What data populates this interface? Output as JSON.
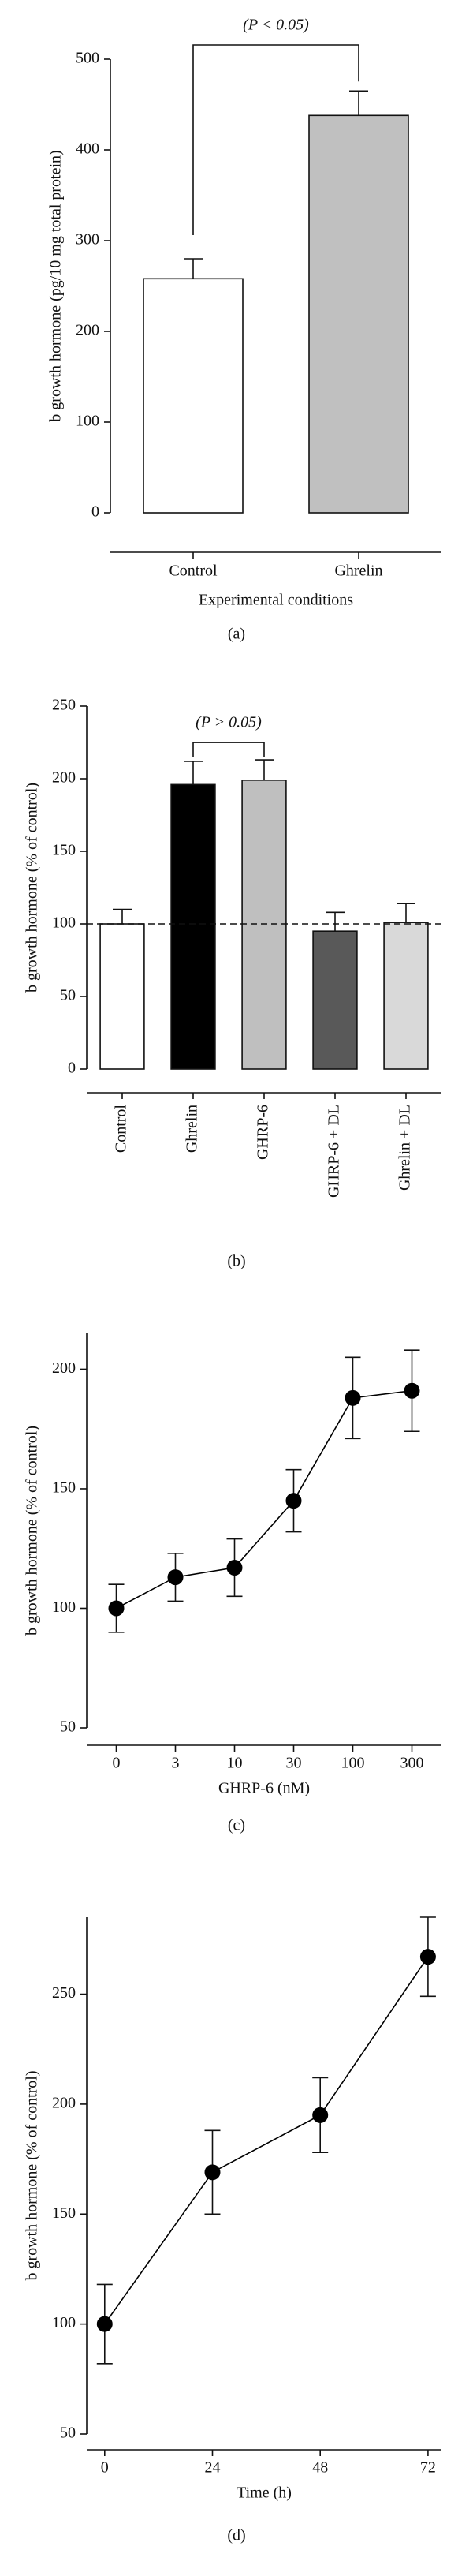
{
  "chart_data": [
    {
      "type": "bar",
      "categories": [
        "Control",
        "Ghrelin"
      ],
      "values": [
        258,
        438
      ],
      "errors": [
        22,
        27
      ],
      "colors": [
        "#ffffff",
        "#c0c0c0"
      ],
      "ylim": [
        0,
        500
      ],
      "yticks": [
        0,
        100,
        200,
        300,
        400,
        500
      ],
      "ylabel": "b growth hormone (pg/10 mg total protein)",
      "xlabel": "Experimental conditions",
      "annotation": "(P < 0.05)",
      "caption": "(a)"
    },
    {
      "type": "bar",
      "categories": [
        "Control",
        "Ghrelin",
        "GHRP-6",
        "GHRP-6 + DL",
        "Ghrelin + DL"
      ],
      "values": [
        100,
        196,
        199,
        95,
        101
      ],
      "errors": [
        10,
        16,
        14,
        13,
        13
      ],
      "colors": [
        "#ffffff",
        "#000000",
        "#bfbfbf",
        "#595959",
        "#d9d9d9"
      ],
      "ylim": [
        0,
        250
      ],
      "yticks": [
        0,
        50,
        100,
        150,
        200,
        250
      ],
      "reference_line": 100,
      "ylabel": "b growth hormone (% of control)",
      "annotation": "(P > 0.05)",
      "caption": "(b)"
    },
    {
      "type": "line",
      "categories": [
        "0",
        "3",
        "10",
        "30",
        "100",
        "300"
      ],
      "values": [
        100,
        113,
        117,
        145,
        188,
        191
      ],
      "errors": [
        10,
        10,
        12,
        13,
        17,
        17
      ],
      "color": "#000000",
      "ylim": [
        50,
        215
      ],
      "yticks": [
        50,
        100,
        150,
        200
      ],
      "ylabel": "b growth hormone (% of control)",
      "xlabel": "GHRP-6 (nM)",
      "caption": "(c)"
    },
    {
      "type": "line",
      "x": [
        0,
        24,
        48,
        72
      ],
      "values": [
        100,
        169,
        195,
        267
      ],
      "errors": [
        18,
        19,
        17,
        18
      ],
      "color": "#000000",
      "xlim": [
        -4,
        75
      ],
      "xticks": [
        0,
        24,
        48,
        72
      ],
      "ylim": [
        50,
        285
      ],
      "yticks": [
        50,
        100,
        150,
        200,
        250
      ],
      "ylabel": "b growth hormone (% of control)",
      "xlabel": "Time (h)",
      "caption": "(d)"
    }
  ]
}
